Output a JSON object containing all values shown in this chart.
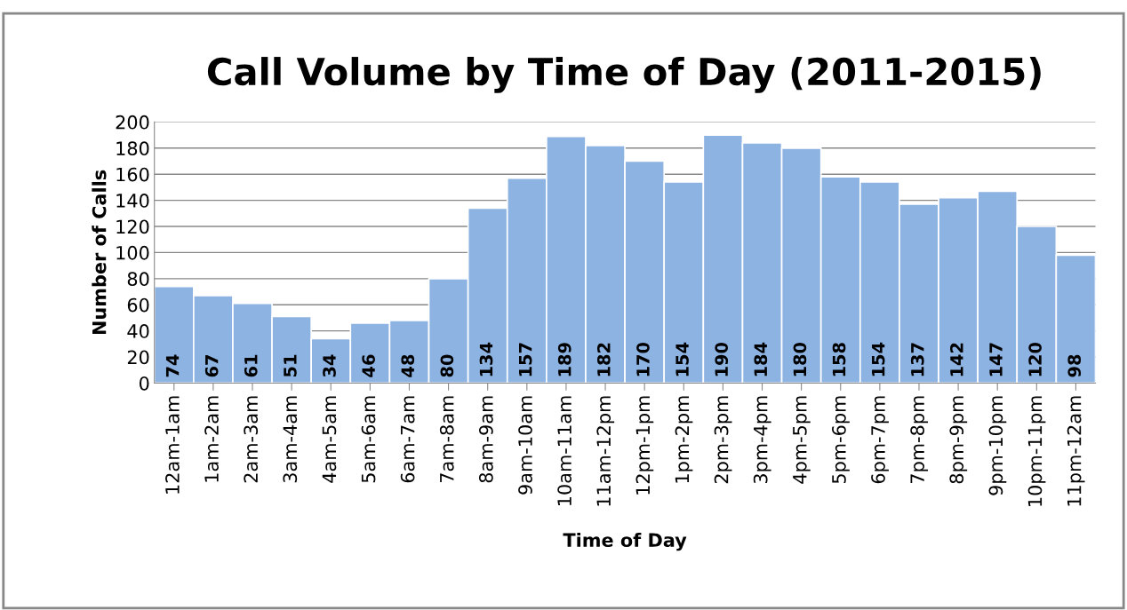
{
  "chart_data": {
    "type": "bar",
    "title": "Call Volume by Time of Day (2011-2015)",
    "xlabel": "Time of Day",
    "ylabel": "Number of Calls",
    "categories": [
      "12am-1am",
      "1am-2am",
      "2am-3am",
      "3am-4am",
      "4am-5am",
      "5am-6am",
      "6am-7am",
      "7am-8am",
      "8am-9am",
      "9am-10am",
      "10am-11am",
      "11am-12pm",
      "12pm-1pm",
      "1pm-2pm",
      "2pm-3pm",
      "3pm-4pm",
      "4pm-5pm",
      "5pm-6pm",
      "6pm-7pm",
      "7pm-8pm",
      "8pm-9pm",
      "9pm-10pm",
      "10pm-11pm",
      "11pm-12am"
    ],
    "values": [
      74,
      67,
      61,
      51,
      34,
      46,
      48,
      80,
      134,
      157,
      189,
      182,
      170,
      154,
      190,
      184,
      180,
      158,
      154,
      137,
      142,
      147,
      120,
      98
    ],
    "color": "#8db3e2",
    "ylim": [
      0,
      200
    ],
    "yticks": [
      0,
      20,
      40,
      60,
      80,
      100,
      120,
      140,
      160,
      180,
      200
    ],
    "grid": "y",
    "data_labels": true,
    "legend": false
  }
}
